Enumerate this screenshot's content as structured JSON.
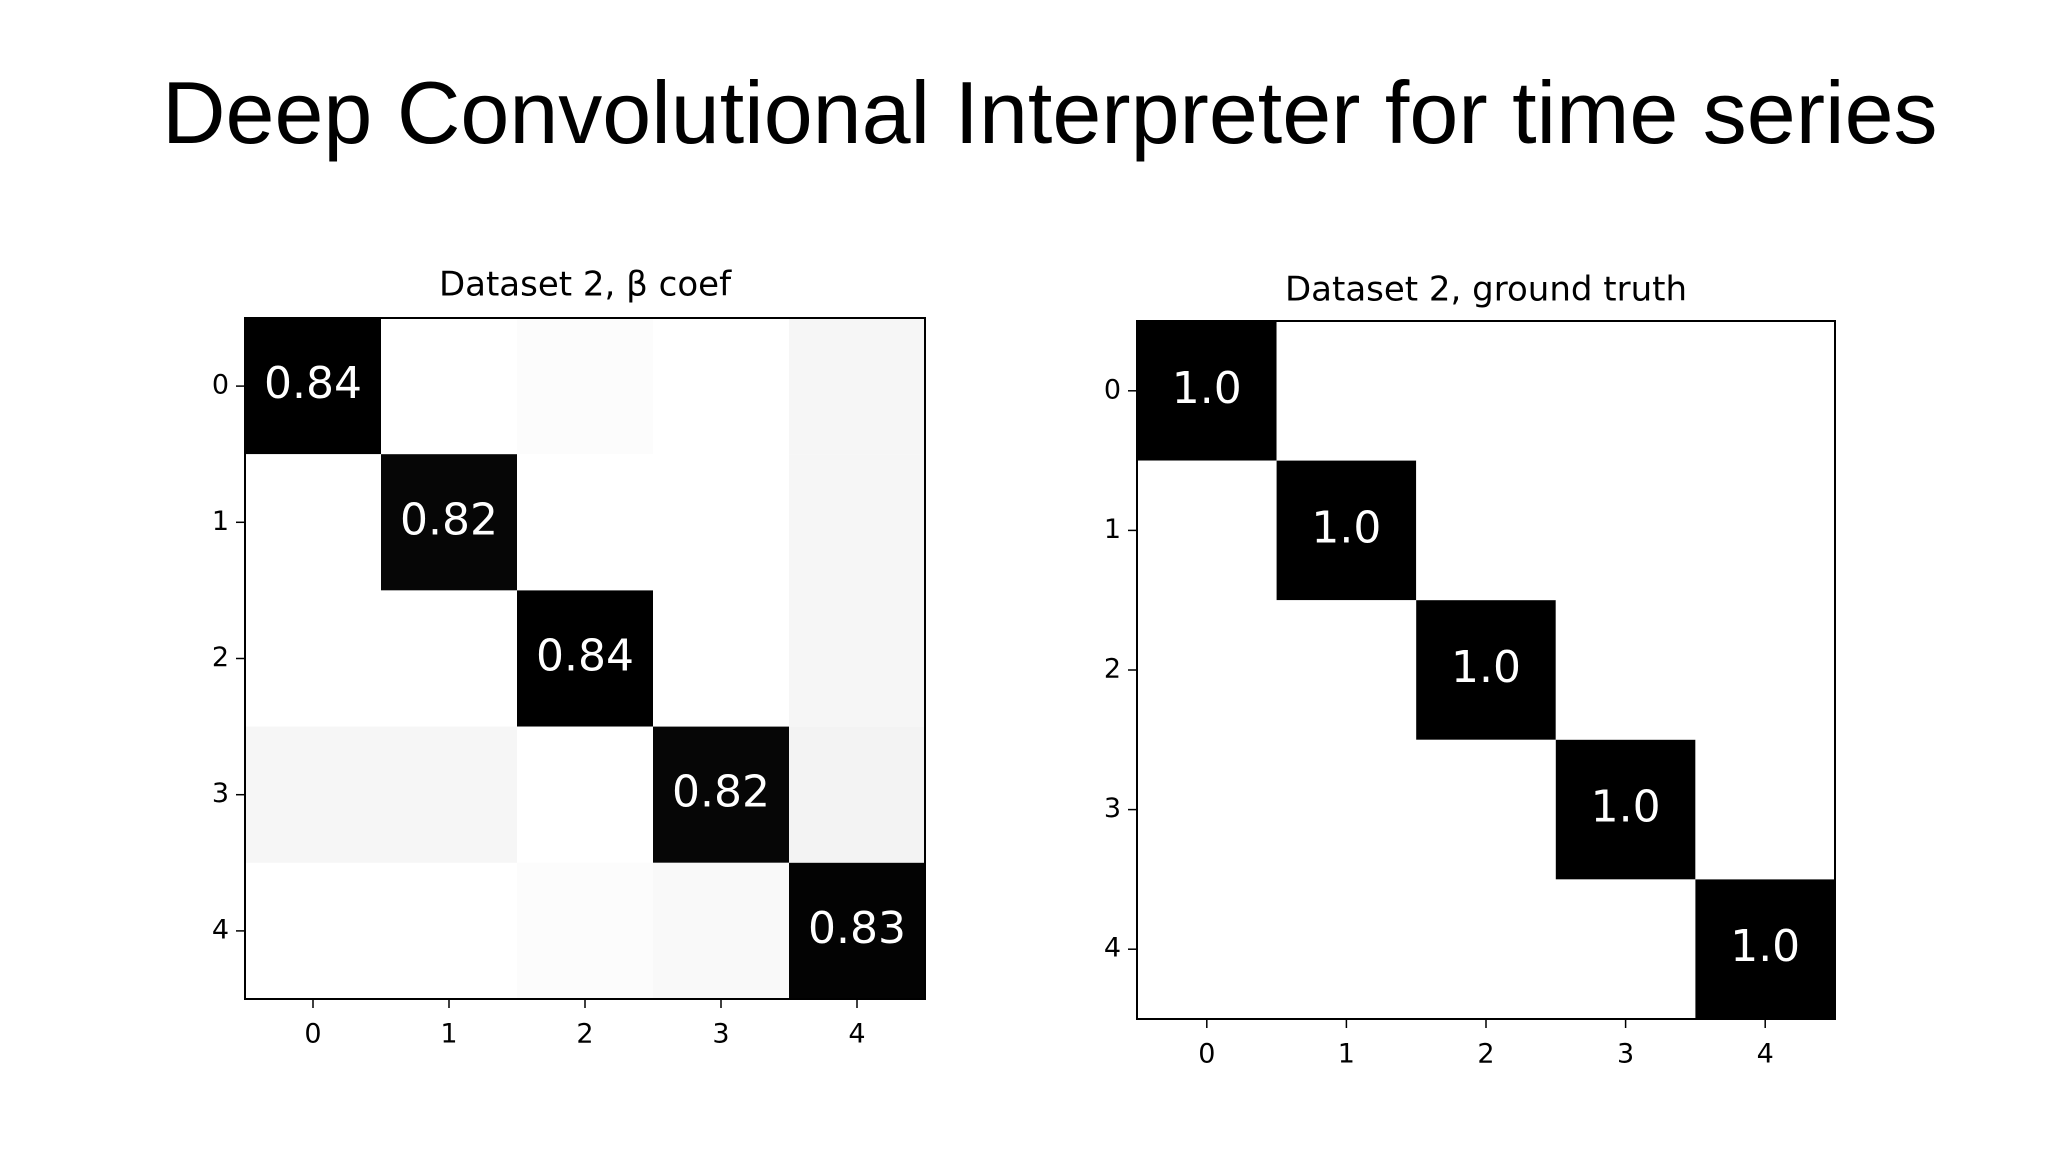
{
  "title": "Deep Convolutional Interpreter for time series",
  "chart_data": [
    {
      "type": "heatmap",
      "title": "Dataset 2, β coef",
      "values": [
        [
          0.84,
          0.0,
          0.01,
          0.0,
          0.03
        ],
        [
          0.0,
          0.82,
          0.0,
          0.0,
          0.03
        ],
        [
          0.0,
          0.0,
          0.84,
          0.0,
          0.03
        ],
        [
          0.03,
          0.03,
          0.0,
          0.82,
          0.04
        ],
        [
          0.0,
          0.0,
          0.01,
          0.02,
          0.83
        ]
      ],
      "value_labels": [
        [
          "0.84",
          null,
          null,
          null,
          null
        ],
        [
          null,
          "0.82",
          null,
          null,
          null
        ],
        [
          null,
          null,
          "0.84",
          null,
          null
        ],
        [
          null,
          null,
          null,
          "0.82",
          null
        ],
        [
          null,
          null,
          null,
          null,
          "0.83"
        ]
      ],
      "colormap": [
        "#ffffff",
        "#000000"
      ],
      "clim": [
        0,
        0.84
      ],
      "xlim": [
        -0.5,
        4.5
      ],
      "ylim": [
        4.5,
        -0.5
      ],
      "xticks": [
        0,
        1,
        2,
        3,
        4
      ],
      "yticks": [
        0,
        1,
        2,
        3,
        4
      ]
    },
    {
      "type": "heatmap",
      "title": "Dataset 2, ground truth",
      "values": [
        [
          1,
          0,
          0,
          0,
          0
        ],
        [
          0,
          1,
          0,
          0,
          0
        ],
        [
          0,
          0,
          1,
          0,
          0
        ],
        [
          0,
          0,
          0,
          1,
          0
        ],
        [
          0,
          0,
          0,
          0,
          1
        ]
      ],
      "value_labels": [
        [
          "1.0",
          null,
          null,
          null,
          null
        ],
        [
          null,
          "1.0",
          null,
          null,
          null
        ],
        [
          null,
          null,
          "1.0",
          null,
          null
        ],
        [
          null,
          null,
          null,
          "1.0",
          null
        ],
        [
          null,
          null,
          null,
          null,
          "1.0"
        ]
      ],
      "colormap": [
        "#ffffff",
        "#000000"
      ],
      "clim": [
        0,
        1
      ],
      "xlim": [
        -0.5,
        4.5
      ],
      "ylim": [
        4.5,
        -0.5
      ],
      "xticks": [
        0,
        1,
        2,
        3,
        4
      ],
      "yticks": [
        0,
        1,
        2,
        3,
        4
      ]
    }
  ]
}
